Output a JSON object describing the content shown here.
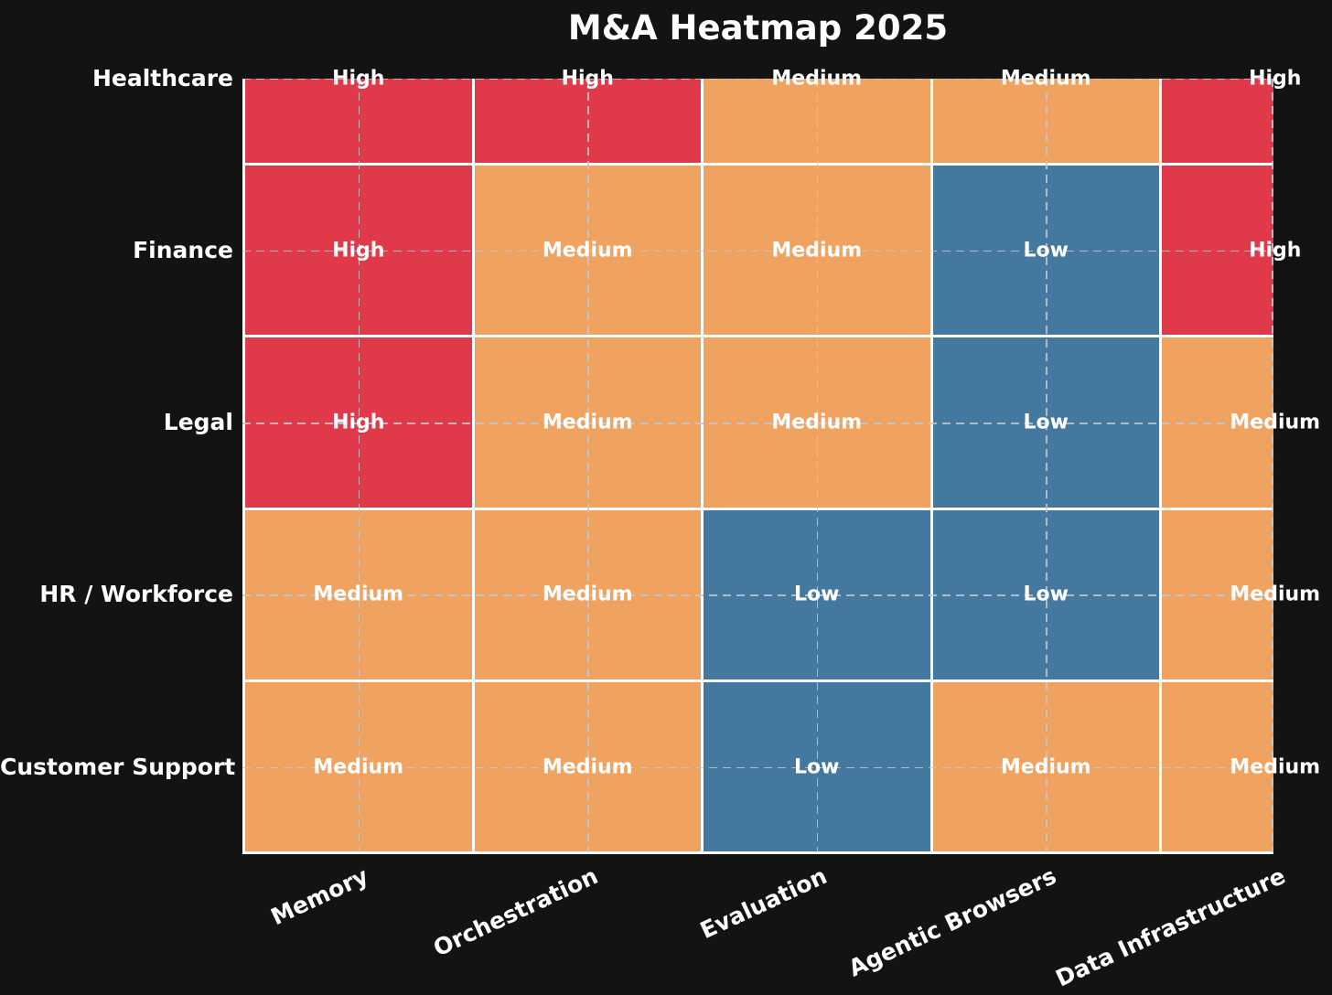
{
  "title": "M&A Heatmap 2025",
  "chart_data": {
    "type": "heatmap",
    "title": "M&A Heatmap 2025",
    "rows": [
      "Healthcare",
      "Finance",
      "Legal",
      "HR / Workforce",
      "Customer Support"
    ],
    "columns": [
      "Memory",
      "Orchestration",
      "Evaluation",
      "Agentic Browsers",
      "Data Infrastructure"
    ],
    "values": [
      [
        "High",
        "High",
        "Medium",
        "Medium",
        "High"
      ],
      [
        "High",
        "Medium",
        "Medium",
        "Low",
        "High"
      ],
      [
        "High",
        "Medium",
        "Medium",
        "Low",
        "Medium"
      ],
      [
        "Medium",
        "Medium",
        "Low",
        "Low",
        "Medium"
      ],
      [
        "Medium",
        "Medium",
        "Low",
        "Medium",
        "Medium"
      ]
    ],
    "levels": [
      "Low",
      "Medium",
      "High"
    ],
    "level_colors": {
      "High": "#E0394A",
      "Medium": "#F0A261",
      "Low": "#45789F"
    },
    "cell_border_color": "#FFFFFF",
    "gridline_style": "dashed lines through cell centers",
    "gridline_color": "#C4C7CF",
    "background_color": "#131313",
    "text_color": "#FFFFFF",
    "legend": "none",
    "layout_notes": "top row clipped at its vertical center; rightmost column clipped at its horizontal center; x tick labels rotated 25 degrees"
  }
}
